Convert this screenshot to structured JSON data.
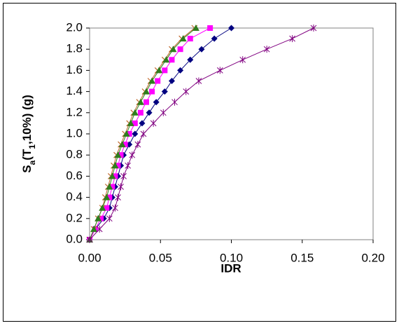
{
  "chart_data": {
    "type": "scatter",
    "x_label": "IDR",
    "y_label_parts": [
      "S",
      "a",
      "(T",
      "1",
      ",10%) (g)"
    ],
    "xlim": [
      0,
      0.2
    ],
    "xticks": [
      {
        "value": 0,
        "label": "0.00"
      },
      {
        "value": 0.05,
        "label": "0.05"
      },
      {
        "value": 0.1,
        "label": "0.10"
      },
      {
        "value": 0.15,
        "label": "0.15"
      },
      {
        "value": 0.2,
        "label": "0.20"
      }
    ],
    "ylim": [
      0,
      2
    ],
    "yticks": [
      {
        "value": 0,
        "label": "0.0"
      },
      0.2,
      0.4,
      0.6,
      0.8,
      {
        "value": 1,
        "label": "1.0"
      },
      1.2,
      1.4,
      1.6,
      1.8,
      {
        "value": 2,
        "label": "2.0"
      }
    ],
    "grid": false,
    "series": [
      {
        "color": "#000080",
        "marker": "diamond",
        "x": [
          0,
          0.004,
          0.01,
          0.014,
          0.016,
          0.018,
          0.02,
          0.022,
          0.024,
          0.028,
          0.032,
          0.037,
          0.042,
          0.047,
          0.053,
          0.058,
          0.064,
          0.071,
          0.079,
          0.088,
          0.1
        ],
        "values": [
          0,
          0.1,
          0.2,
          0.3,
          0.4,
          0.5,
          0.6,
          0.7,
          0.8,
          0.9,
          1.0,
          1.1,
          1.2,
          1.3,
          1.4,
          1.5,
          1.6,
          1.7,
          1.8,
          1.9,
          2.0
        ]
      },
      {
        "color": "#ff00ff",
        "marker": "square",
        "x": [
          0,
          0.004,
          0.008,
          0.012,
          0.014,
          0.016,
          0.018,
          0.02,
          0.022,
          0.025,
          0.028,
          0.032,
          0.036,
          0.04,
          0.044,
          0.048,
          0.053,
          0.058,
          0.064,
          0.071,
          0.085
        ],
        "values": [
          0,
          0.1,
          0.2,
          0.3,
          0.4,
          0.5,
          0.6,
          0.7,
          0.8,
          0.9,
          1.0,
          1.1,
          1.2,
          1.3,
          1.4,
          1.5,
          1.6,
          1.7,
          1.8,
          1.9,
          2.0
        ]
      },
      {
        "color": "#c0682c",
        "marker": "x",
        "x": [
          0,
          0.003,
          0.006,
          0.009,
          0.011,
          0.013,
          0.015,
          0.017,
          0.019,
          0.022,
          0.025,
          0.028,
          0.031,
          0.035,
          0.039,
          0.043,
          0.048,
          0.053,
          0.058,
          0.065,
          0.074
        ],
        "values": [
          0,
          0.1,
          0.2,
          0.3,
          0.4,
          0.5,
          0.6,
          0.7,
          0.8,
          0.9,
          1.0,
          1.1,
          1.2,
          1.3,
          1.4,
          1.5,
          1.6,
          1.7,
          1.8,
          1.9,
          2.0
        ]
      },
      {
        "color": "#2e7d1e",
        "marker": "triangle",
        "x": [
          0,
          0.003,
          0.006,
          0.009,
          0.012,
          0.014,
          0.016,
          0.018,
          0.02,
          0.023,
          0.026,
          0.029,
          0.032,
          0.036,
          0.04,
          0.044,
          0.049,
          0.054,
          0.059,
          0.066,
          0.075
        ],
        "values": [
          0,
          0.1,
          0.2,
          0.3,
          0.4,
          0.5,
          0.6,
          0.7,
          0.8,
          0.9,
          1.0,
          1.1,
          1.2,
          1.3,
          1.4,
          1.5,
          1.6,
          1.7,
          1.8,
          1.9,
          2.0
        ]
      },
      {
        "color": "#800080",
        "marker": "star",
        "x": [
          0,
          0.007,
          0.014,
          0.018,
          0.02,
          0.022,
          0.024,
          0.027,
          0.03,
          0.034,
          0.038,
          0.045,
          0.052,
          0.06,
          0.068,
          0.077,
          0.092,
          0.108,
          0.125,
          0.143,
          0.158
        ],
        "values": [
          0,
          0.1,
          0.2,
          0.3,
          0.4,
          0.5,
          0.6,
          0.7,
          0.8,
          0.9,
          1.0,
          1.1,
          1.2,
          1.3,
          1.4,
          1.5,
          1.6,
          1.7,
          1.8,
          1.9,
          2.0
        ]
      }
    ]
  }
}
